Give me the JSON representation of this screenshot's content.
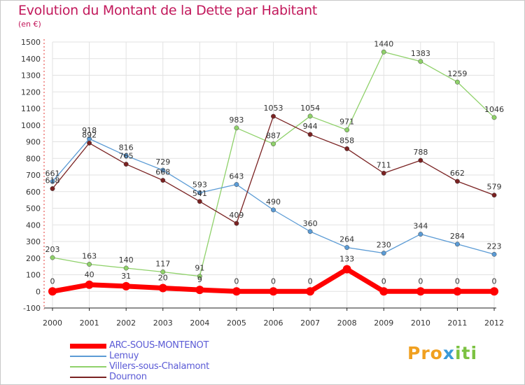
{
  "title": "Evolution du Montant de la Dette par Habitant",
  "unit": "(en €)",
  "logo": [
    "Pro",
    "x",
    "iti"
  ],
  "chart_data": {
    "type": "line",
    "x": [
      "2000",
      "2001",
      "2002",
      "2003",
      "2004",
      "2005",
      "2006",
      "2007",
      "2008",
      "2009",
      "2010",
      "2011",
      "2012"
    ],
    "ylim": [
      -100,
      1500
    ],
    "yticks": [
      -100,
      0,
      100,
      200,
      300,
      400,
      500,
      600,
      700,
      800,
      900,
      1000,
      1100,
      1200,
      1300,
      1400,
      1500
    ],
    "grid": true,
    "legend_placement": "bottom-left",
    "series": [
      {
        "name": "ARC-SOUS-MONTENOT",
        "color": "#ff0000",
        "width": 7,
        "values": [
          0,
          40,
          31,
          20,
          9,
          0,
          0,
          0,
          133,
          0,
          0,
          0,
          0
        ],
        "labels": [
          "0",
          "40",
          "31",
          "20",
          "9",
          "0",
          "0",
          "0",
          "133",
          "0",
          "0",
          "0",
          "0"
        ]
      },
      {
        "name": "Lemuy",
        "color": "#5b9bd5",
        "width": 1.3,
        "values": [
          661,
          918,
          816,
          729,
          593,
          643,
          490,
          360,
          264,
          230,
          344,
          284,
          223
        ],
        "labels": [
          "661",
          "918",
          "816",
          "729",
          "593",
          "643",
          "490",
          "360",
          "264",
          "230",
          "344",
          "284",
          "223"
        ]
      },
      {
        "name": "Villers-sous-Chalamont",
        "color": "#8fd16a",
        "width": 1.3,
        "values": [
          203,
          163,
          140,
          117,
          91,
          983,
          887,
          1054,
          971,
          1440,
          1383,
          1259,
          1046
        ],
        "labels": [
          "203",
          "163",
          "140",
          "117",
          "91",
          "983",
          "887",
          "1054",
          "971",
          "1440",
          "1383",
          "1259",
          "1046"
        ]
      },
      {
        "name": "Dournon",
        "color": "#7a2222",
        "width": 1.3,
        "values": [
          618,
          892,
          765,
          668,
          541,
          409,
          1053,
          944,
          858,
          711,
          788,
          662,
          579
        ],
        "labels": [
          "618",
          "892",
          "765",
          "668",
          "541",
          "409",
          "1053",
          "944",
          "858",
          "711",
          "788",
          "662",
          "579"
        ]
      }
    ]
  }
}
